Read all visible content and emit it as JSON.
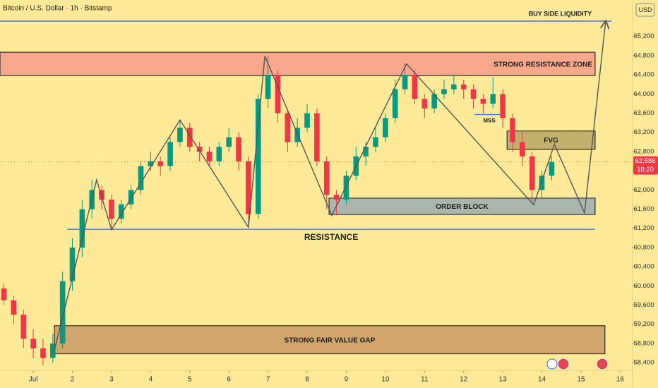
{
  "chart_data": {
    "type": "candlestick",
    "title": "Bitcoin / U.S. Dollar · 1h · Bitstamp",
    "currency": "USD",
    "up_color": "#089981",
    "down_color": "#f23645",
    "grid": false,
    "xlim": [
      0.15,
      16.3
    ],
    "ylim": [
      58240,
      65960
    ],
    "xticks": [
      {
        "value": 1,
        "label": "Jul"
      },
      2,
      3,
      4,
      5,
      6,
      7,
      8,
      9,
      10,
      11,
      12,
      13,
      14,
      15,
      16
    ],
    "yticks": [
      {
        "value": 58400,
        "label": "58,400"
      },
      {
        "value": 58800,
        "label": "58,800"
      },
      {
        "value": 59200,
        "label": "59,200"
      },
      {
        "value": 59600,
        "label": "59,600"
      },
      {
        "value": 60000,
        "label": "60,000"
      },
      {
        "value": 60400,
        "label": "60,400"
      },
      {
        "value": 60800,
        "label": "60,800"
      },
      {
        "value": 61200,
        "label": "61,200"
      },
      {
        "value": 61600,
        "label": "61,600"
      },
      {
        "value": 62000,
        "label": "62,000"
      },
      {
        "value": 62400,
        "label": "62,400"
      },
      {
        "value": 62800,
        "label": "62,800"
      },
      {
        "value": 63200,
        "label": "63,200"
      },
      {
        "value": 63600,
        "label": "63,600"
      },
      {
        "value": 64000,
        "label": "64,000"
      },
      {
        "value": 64400,
        "label": "64,400"
      },
      {
        "value": 64800,
        "label": "64,800"
      },
      {
        "value": 65200,
        "label": "65,200"
      }
    ],
    "x": [
      0.25,
      0.5,
      0.75,
      1,
      1.25,
      1.5,
      1.75,
      2,
      2.25,
      2.5,
      2.75,
      3,
      3.25,
      3.5,
      3.75,
      4,
      4.25,
      4.5,
      4.75,
      5,
      5.25,
      5.5,
      5.75,
      6,
      6.25,
      6.5,
      6.75,
      7,
      7.25,
      7.5,
      7.75,
      8,
      8.25,
      8.5,
      8.75,
      9,
      9.25,
      9.5,
      9.75,
      10,
      10.25,
      10.5,
      10.75,
      11,
      11.25,
      11.5,
      11.75,
      12,
      12.25,
      12.5,
      12.75,
      13,
      13.25,
      13.5,
      13.75,
      14,
      14.25
    ],
    "open": [
      59950,
      59700,
      59400,
      58900,
      58700,
      58500,
      58800,
      60100,
      60800,
      61600,
      62000,
      61800,
      61400,
      61700,
      62000,
      62500,
      62600,
      62500,
      63000,
      63300,
      62900,
      62800,
      62600,
      62900,
      63100,
      62600,
      61500,
      63900,
      64400,
      63600,
      63000,
      63300,
      63600,
      62600,
      61900,
      61800,
      62300,
      62700,
      62900,
      63100,
      63500,
      64100,
      64400,
      63900,
      63700,
      64000,
      64100,
      64200,
      64100,
      63900,
      63800,
      64000,
      63500,
      63000,
      62700,
      62000,
      62300
    ],
    "high": [
      60050,
      59800,
      59500,
      59100,
      58900,
      59000,
      60300,
      61000,
      61800,
      62210,
      62100,
      61900,
      61800,
      62100,
      62600,
      62800,
      62700,
      63100,
      63460,
      63400,
      63000,
      62900,
      63000,
      63300,
      63200,
      62700,
      64000,
      64790,
      64500,
      63700,
      63500,
      63800,
      63700,
      62700,
      62000,
      62400,
      62900,
      63000,
      63300,
      63600,
      64300,
      64630,
      64500,
      64000,
      64100,
      64300,
      64400,
      64300,
      64200,
      64000,
      64350,
      64100,
      63600,
      63200,
      62800,
      62400,
      62700
    ],
    "low": [
      59600,
      59200,
      58700,
      58500,
      58350,
      58400,
      58700,
      59900,
      60600,
      61400,
      61600,
      61170,
      61300,
      61600,
      61900,
      62400,
      62300,
      62400,
      62900,
      62800,
      62600,
      62500,
      62500,
      62800,
      62400,
      61220,
      61400,
      63700,
      63400,
      62800,
      62900,
      63200,
      62500,
      61600,
      61470,
      61700,
      62200,
      62500,
      62800,
      63000,
      63400,
      64000,
      63800,
      63500,
      63600,
      63900,
      64000,
      63900,
      63700,
      63600,
      63700,
      63300,
      62800,
      62500,
      61690,
      61800,
      62200
    ],
    "close": [
      59700,
      59400,
      58900,
      58700,
      58500,
      58800,
      60100,
      60800,
      61600,
      62000,
      61800,
      61400,
      61700,
      62000,
      62500,
      62600,
      62500,
      63000,
      63300,
      62900,
      62800,
      62600,
      62900,
      63100,
      62600,
      61500,
      63900,
      64400,
      63600,
      63000,
      63300,
      63600,
      62600,
      61900,
      61800,
      62300,
      62700,
      62900,
      63100,
      63500,
      64100,
      64400,
      63900,
      63700,
      64000,
      64100,
      64200,
      64100,
      63900,
      63800,
      64000,
      63500,
      63000,
      62700,
      62000,
      62300,
      62586
    ],
    "last_price": {
      "value": 62586,
      "label": "62,586"
    },
    "countdown": "18:20",
    "zones": [
      {
        "label": "STRONG RESISTANCE ZONE",
        "x": [
          0.15,
          15.36
        ],
        "y": [
          64385,
          64870
        ],
        "color": "#f7a88c",
        "align": "right"
      },
      {
        "label": "FVG",
        "x": [
          13.11,
          15.36
        ],
        "y": [
          62850,
          63230
        ],
        "color": "#c2b16c",
        "align": "center"
      },
      {
        "label": "ORDER BLOCK",
        "x": [
          8.56,
          15.36
        ],
        "y": [
          61490,
          61830
        ],
        "color": "#a9b6ad",
        "align": "center"
      },
      {
        "label": "STRONG FAIR VALUE GAP",
        "x": [
          1.54,
          15.61
        ],
        "y": [
          58585,
          59170
        ],
        "color": "#d2a56d",
        "align": "center"
      }
    ],
    "levels": [
      {
        "label": "BUY SIDE LIQUIDITY",
        "x": [
          0.15,
          15.78
        ],
        "y": 65520,
        "color": "#2962ff",
        "label_side": "above-right"
      },
      {
        "label": "RESISTANCE",
        "x": [
          1.87,
          15.36
        ],
        "y": 61180,
        "color": "#2962ff",
        "label_side": "below"
      },
      {
        "label": "MSS",
        "x": [
          12.28,
          13.03
        ],
        "y": 63570,
        "color": "#2962ff",
        "label_side": "below"
      }
    ],
    "path": {
      "x": [
        1.54,
        2.62,
        3.0,
        4.75,
        6.5,
        6.92,
        8.63,
        10.54,
        13.79,
        14.32,
        15.09,
        15.63
      ],
      "y": [
        58660,
        62210,
        61170,
        63460,
        61220,
        64790,
        61470,
        64630,
        61690,
        62950,
        61520,
        65520
      ],
      "color": "#555555"
    }
  }
}
